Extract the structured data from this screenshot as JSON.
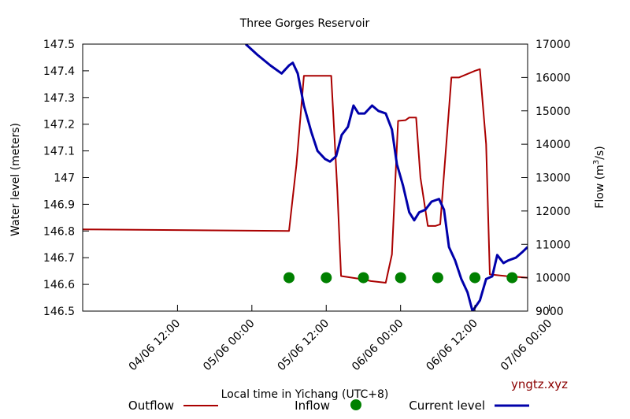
{
  "chart_data": {
    "type": "line",
    "title": "Three Gorges Reservoir",
    "xlabel": "Local time in Yichang (UTC+8)",
    "ylabel_left": "Water level (meters)",
    "ylabel_right_prefix": "Flow (m",
    "ylabel_right_sup": "3",
    "ylabel_right_suffix": "/s)",
    "credit": "yngtz.xyz",
    "x_ticks": [
      "04/06 12:00",
      "05/06 00:00",
      "05/06 12:00",
      "06/06 00:00",
      "06/06 12:00",
      "07/06 00:00"
    ],
    "y_left": {
      "min": 146.5,
      "max": 147.5,
      "ticks": [
        "146.5",
        "146.6",
        "146.7",
        "146.8",
        "146.9",
        "147",
        "147.1",
        "147.2",
        "147.3",
        "147.4",
        "147.5"
      ]
    },
    "y_right": {
      "min": 9000,
      "max": 17000,
      "ticks": [
        "9000",
        "10000",
        "11000",
        "12000",
        "13000",
        "14000",
        "15000",
        "16000",
        "17000"
      ]
    },
    "x_range_hours": [
      -15.3,
      56.5
    ],
    "series": [
      {
        "name": "Outflow",
        "axis": "right",
        "color": "#aa0000",
        "style": "line",
        "points": [
          [
            -15.3,
            11450
          ],
          [
            18.0,
            11400
          ],
          [
            19.2,
            13400
          ],
          [
            20.4,
            16050
          ],
          [
            24.8,
            16050
          ],
          [
            25.8,
            12600
          ],
          [
            26.4,
            10050
          ],
          [
            30.0,
            9950
          ],
          [
            31.2,
            9900
          ],
          [
            33.6,
            9850
          ],
          [
            34.6,
            10700
          ],
          [
            35.6,
            14700
          ],
          [
            36.8,
            14720
          ],
          [
            37.4,
            14800
          ],
          [
            38.5,
            14800
          ],
          [
            39.2,
            13000
          ],
          [
            40.4,
            11550
          ],
          [
            41.6,
            11550
          ],
          [
            42.4,
            11600
          ],
          [
            43.0,
            13100
          ],
          [
            44.2,
            16000
          ],
          [
            45.4,
            16000
          ],
          [
            48.0,
            16200
          ],
          [
            48.8,
            16250
          ],
          [
            49.8,
            14000
          ],
          [
            50.4,
            10100
          ],
          [
            53.0,
            10050
          ],
          [
            56.5,
            10000
          ]
        ]
      },
      {
        "name": "Inflow",
        "axis": "right",
        "color": "#008000",
        "style": "markers",
        "points": [
          [
            18.0,
            10000
          ],
          [
            24.0,
            10000
          ],
          [
            30.0,
            10000
          ],
          [
            36.0,
            10000
          ],
          [
            42.0,
            10000
          ],
          [
            48.0,
            10000
          ],
          [
            54.0,
            10000
          ]
        ]
      },
      {
        "name": "Current level",
        "axis": "left",
        "color": "#0000aa",
        "style": "line",
        "points": [
          [
            11.0,
            147.5
          ],
          [
            12.9,
            147.46
          ],
          [
            15.0,
            147.42
          ],
          [
            16.8,
            147.39
          ],
          [
            18.0,
            147.42
          ],
          [
            18.6,
            147.43
          ],
          [
            19.4,
            147.39
          ],
          [
            20.4,
            147.27
          ],
          [
            21.6,
            147.17
          ],
          [
            22.6,
            147.1
          ],
          [
            23.8,
            147.07
          ],
          [
            24.6,
            147.06
          ],
          [
            25.6,
            147.08
          ],
          [
            26.5,
            147.16
          ],
          [
            27.5,
            147.19
          ],
          [
            28.4,
            147.27
          ],
          [
            29.2,
            147.24
          ],
          [
            30.2,
            147.24
          ],
          [
            31.4,
            147.27
          ],
          [
            32.4,
            147.25
          ],
          [
            33.6,
            147.24
          ],
          [
            34.6,
            147.18
          ],
          [
            35.4,
            147.05
          ],
          [
            36.4,
            146.97
          ],
          [
            37.4,
            146.87
          ],
          [
            38.2,
            146.84
          ],
          [
            39.0,
            146.87
          ],
          [
            40.0,
            146.88
          ],
          [
            41.0,
            146.91
          ],
          [
            42.2,
            146.92
          ],
          [
            43.0,
            146.88
          ],
          [
            43.8,
            146.74
          ],
          [
            44.8,
            146.69
          ],
          [
            45.8,
            146.62
          ],
          [
            46.8,
            146.57
          ],
          [
            47.6,
            146.5
          ],
          [
            48.8,
            146.54
          ],
          [
            49.8,
            146.62
          ],
          [
            50.8,
            146.63
          ],
          [
            51.6,
            146.71
          ],
          [
            52.6,
            146.68
          ],
          [
            53.4,
            146.69
          ],
          [
            54.6,
            146.7
          ],
          [
            55.6,
            146.72
          ],
          [
            56.5,
            146.74
          ]
        ]
      }
    ],
    "grid": false,
    "legend_position": "bottom"
  }
}
